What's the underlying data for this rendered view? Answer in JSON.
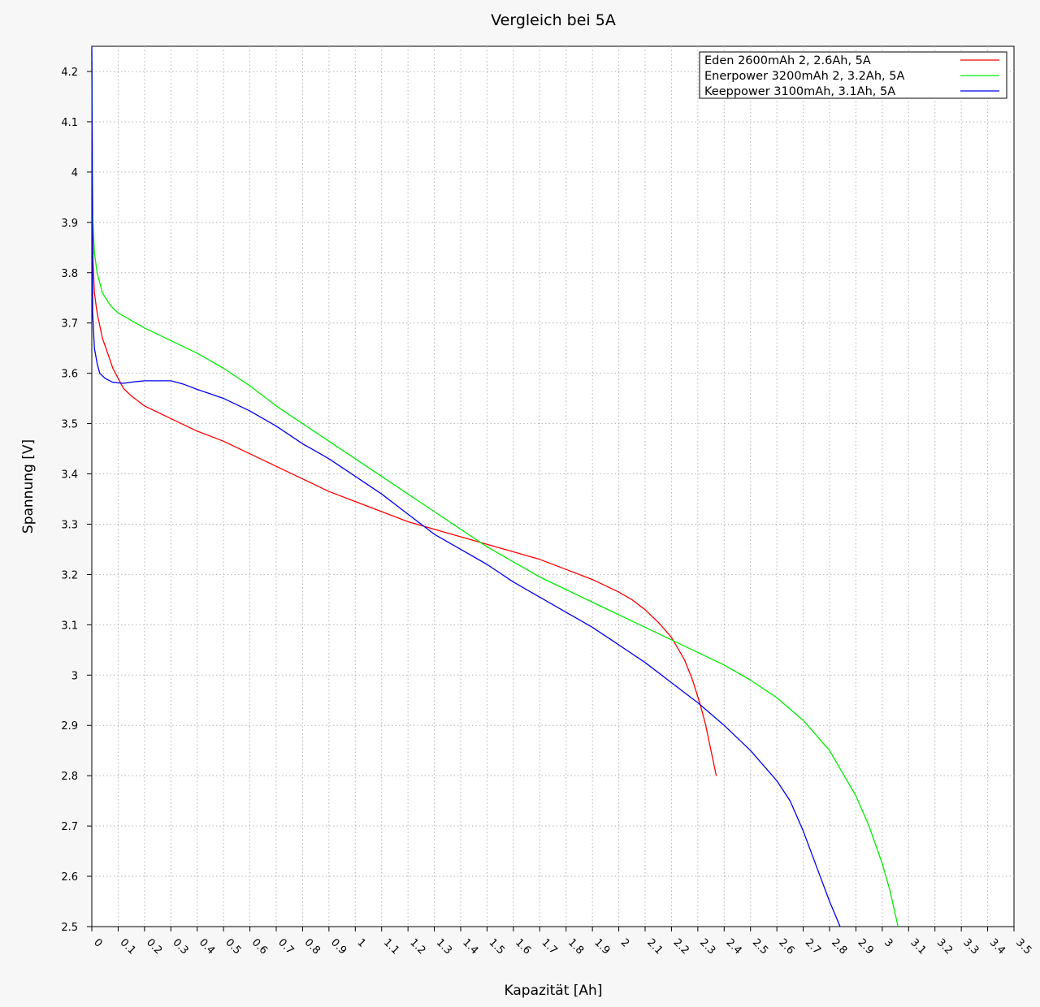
{
  "chart_data": {
    "type": "line",
    "title": "Vergleich bei 5A",
    "xlabel": "Kapazität [Ah]",
    "ylabel": "Spannung [V]",
    "xlim": [
      0,
      3.5
    ],
    "ylim": [
      2.5,
      4.25
    ],
    "x_ticks": [
      "0",
      "0.1",
      "0.2",
      "0.3",
      "0.4",
      "0.5",
      "0.6",
      "0.7",
      "0.8",
      "0.9",
      "1",
      "1.1",
      "1.2",
      "1.3",
      "1.4",
      "1.5",
      "1.6",
      "1.7",
      "1.8",
      "1.9",
      "2",
      "2.1",
      "2.2",
      "2.3",
      "2.4",
      "2.5",
      "2.6",
      "2.7",
      "2.8",
      "2.9",
      "3",
      "3.1",
      "3.2",
      "3.3",
      "3.4",
      "3.5"
    ],
    "y_ticks": [
      "2.5",
      "2.6",
      "2.7",
      "2.8",
      "2.9",
      "3",
      "3.1",
      "3.2",
      "3.3",
      "3.4",
      "3.5",
      "3.6",
      "3.7",
      "3.8",
      "3.9",
      "4",
      "4.1",
      "4.2"
    ],
    "grid": true,
    "legend_position": "top-right",
    "series": [
      {
        "name": "Eden 2600mAh 2, 2.6Ah, 5A",
        "color": "#ff0000",
        "points": [
          [
            0,
            4.22
          ],
          [
            0.005,
            3.82
          ],
          [
            0.01,
            3.76
          ],
          [
            0.02,
            3.72
          ],
          [
            0.04,
            3.67
          ],
          [
            0.06,
            3.64
          ],
          [
            0.08,
            3.61
          ],
          [
            0.1,
            3.59
          ],
          [
            0.12,
            3.57
          ],
          [
            0.15,
            3.555
          ],
          [
            0.2,
            3.535
          ],
          [
            0.3,
            3.51
          ],
          [
            0.4,
            3.485
          ],
          [
            0.5,
            3.465
          ],
          [
            0.6,
            3.44
          ],
          [
            0.7,
            3.415
          ],
          [
            0.8,
            3.39
          ],
          [
            0.9,
            3.365
          ],
          [
            1.0,
            3.345
          ],
          [
            1.1,
            3.325
          ],
          [
            1.2,
            3.305
          ],
          [
            1.3,
            3.29
          ],
          [
            1.4,
            3.275
          ],
          [
            1.5,
            3.26
          ],
          [
            1.6,
            3.245
          ],
          [
            1.7,
            3.23
          ],
          [
            1.8,
            3.21
          ],
          [
            1.9,
            3.19
          ],
          [
            2.0,
            3.165
          ],
          [
            2.05,
            3.15
          ],
          [
            2.1,
            3.13
          ],
          [
            2.15,
            3.105
          ],
          [
            2.2,
            3.075
          ],
          [
            2.25,
            3.03
          ],
          [
            2.28,
            2.99
          ],
          [
            2.31,
            2.94
          ],
          [
            2.33,
            2.9
          ],
          [
            2.35,
            2.85
          ],
          [
            2.37,
            2.8
          ]
        ]
      },
      {
        "name": "Enerpower 3200mAh 2, 3.2Ah, 5A",
        "color": "#00ee00",
        "points": [
          [
            0,
            4.24
          ],
          [
            0.003,
            3.92
          ],
          [
            0.01,
            3.84
          ],
          [
            0.02,
            3.8
          ],
          [
            0.04,
            3.76
          ],
          [
            0.07,
            3.735
          ],
          [
            0.1,
            3.72
          ],
          [
            0.15,
            3.705
          ],
          [
            0.2,
            3.69
          ],
          [
            0.3,
            3.665
          ],
          [
            0.4,
            3.64
          ],
          [
            0.5,
            3.61
          ],
          [
            0.6,
            3.575
          ],
          [
            0.7,
            3.535
          ],
          [
            0.8,
            3.5
          ],
          [
            0.9,
            3.465
          ],
          [
            1.0,
            3.43
          ],
          [
            1.1,
            3.395
          ],
          [
            1.2,
            3.36
          ],
          [
            1.3,
            3.325
          ],
          [
            1.4,
            3.29
          ],
          [
            1.5,
            3.255
          ],
          [
            1.6,
            3.225
          ],
          [
            1.7,
            3.195
          ],
          [
            1.8,
            3.17
          ],
          [
            1.9,
            3.145
          ],
          [
            2.0,
            3.12
          ],
          [
            2.1,
            3.095
          ],
          [
            2.2,
            3.07
          ],
          [
            2.3,
            3.045
          ],
          [
            2.4,
            3.02
          ],
          [
            2.5,
            2.99
          ],
          [
            2.6,
            2.955
          ],
          [
            2.7,
            2.91
          ],
          [
            2.8,
            2.85
          ],
          [
            2.9,
            2.76
          ],
          [
            2.95,
            2.7
          ],
          [
            3.0,
            2.625
          ],
          [
            3.03,
            2.57
          ],
          [
            3.06,
            2.5
          ]
        ]
      },
      {
        "name": "Keeppower 3100mAh, 3.1Ah, 5A",
        "color": "#0000ee",
        "points": [
          [
            0,
            4.25
          ],
          [
            0.003,
            3.72
          ],
          [
            0.01,
            3.65
          ],
          [
            0.02,
            3.62
          ],
          [
            0.03,
            3.6
          ],
          [
            0.05,
            3.59
          ],
          [
            0.08,
            3.582
          ],
          [
            0.12,
            3.58
          ],
          [
            0.16,
            3.583
          ],
          [
            0.2,
            3.585
          ],
          [
            0.25,
            3.585
          ],
          [
            0.3,
            3.585
          ],
          [
            0.35,
            3.578
          ],
          [
            0.4,
            3.568
          ],
          [
            0.5,
            3.55
          ],
          [
            0.6,
            3.525
          ],
          [
            0.7,
            3.495
          ],
          [
            0.8,
            3.46
          ],
          [
            0.9,
            3.43
          ],
          [
            1.0,
            3.395
          ],
          [
            1.1,
            3.36
          ],
          [
            1.2,
            3.32
          ],
          [
            1.3,
            3.28
          ],
          [
            1.4,
            3.25
          ],
          [
            1.5,
            3.22
          ],
          [
            1.6,
            3.185
          ],
          [
            1.7,
            3.155
          ],
          [
            1.8,
            3.125
          ],
          [
            1.9,
            3.095
          ],
          [
            2.0,
            3.06
          ],
          [
            2.1,
            3.025
          ],
          [
            2.2,
            2.985
          ],
          [
            2.3,
            2.945
          ],
          [
            2.4,
            2.9
          ],
          [
            2.5,
            2.85
          ],
          [
            2.6,
            2.79
          ],
          [
            2.65,
            2.75
          ],
          [
            2.7,
            2.69
          ],
          [
            2.75,
            2.62
          ],
          [
            2.8,
            2.55
          ],
          [
            2.84,
            2.5
          ]
        ]
      }
    ]
  }
}
